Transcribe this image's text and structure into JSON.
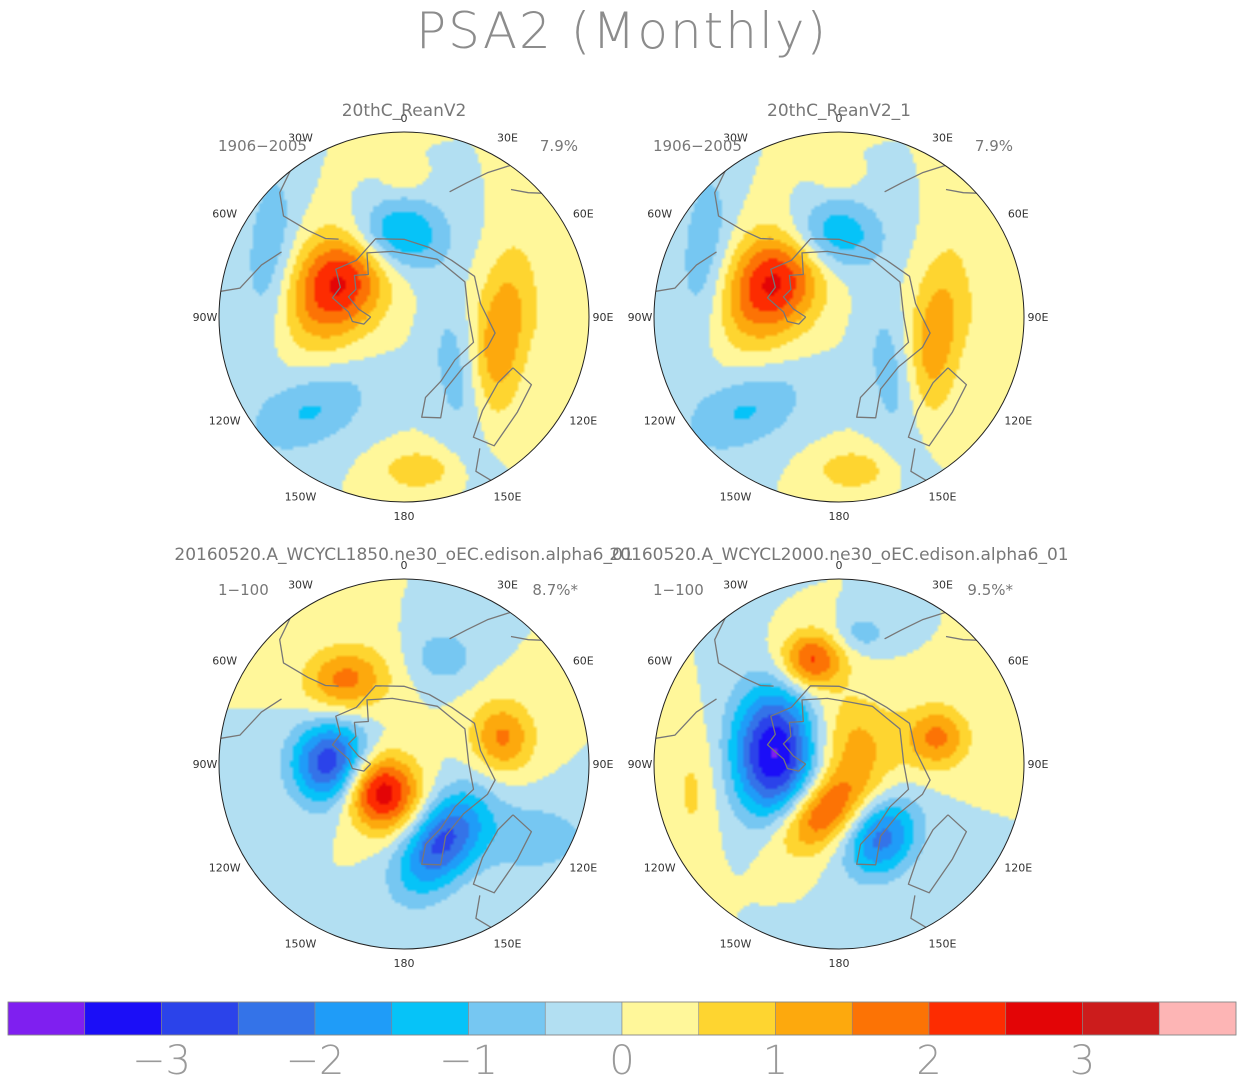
{
  "title": "PSA2 (Monthly)",
  "chart_data": {
    "type": "heatmap",
    "title": "PSA2 (Monthly)",
    "projection": "south-polar-stereographic",
    "colorbar": {
      "colors": [
        "#7f1ff0",
        "#1b0ef7",
        "#2b43ea",
        "#3473e8",
        "#1f9cf8",
        "#06c3f8",
        "#76c7f2",
        "#b2dff2",
        "#fff79a",
        "#fed530",
        "#fda90d",
        "#fc7305",
        "#fd2c01",
        "#e30506",
        "#cc1c1c",
        "#fdb5b5"
      ],
      "tick_labels": [
        "−3",
        "−2",
        "−1",
        "0",
        "1",
        "2",
        "3"
      ],
      "tick_values": [
        -3,
        -2,
        -1,
        0,
        1,
        2,
        3
      ],
      "range": [
        -4,
        4
      ],
      "interval": 0.5
    },
    "longitude_labels": [
      "0",
      "30E",
      "60E",
      "90E",
      "120E",
      "150E",
      "180",
      "150W",
      "120W",
      "90W",
      "60W",
      "30W"
    ],
    "panels": [
      {
        "name": "20thC_ReanV2",
        "years": "1906−2005",
        "pct": "7.9%",
        "centers": [
          {
            "lon": -60,
            "r": 0.4,
            "value": 2.7,
            "sx": 0.17,
            "sy": 0.24,
            "rot": 30
          },
          {
            "lon": -8,
            "r": 0.45,
            "value": -2.0,
            "sx": 0.19,
            "sy": 0.14,
            "rot": 0
          },
          {
            "lon": 103,
            "r": 0.53,
            "value": 1.5,
            "sx": 0.11,
            "sy": 0.34,
            "rot": 10
          },
          {
            "lon": -135,
            "r": 0.72,
            "value": -1.05,
            "sx": 0.25,
            "sy": 0.14,
            "rot": -25
          },
          {
            "lon": -65,
            "r": 0.8,
            "value": -0.9,
            "sx": 0.1,
            "sy": 0.35,
            "rot": 5
          },
          {
            "lon": 140,
            "r": 0.48,
            "value": -0.9,
            "sx": 0.1,
            "sy": 0.32,
            "rot": -10
          },
          {
            "lon": 175,
            "r": 0.83,
            "value": 0.9,
            "sx": 0.14,
            "sy": 0.08,
            "rot": 0
          },
          {
            "lon": 0,
            "r": 0.75,
            "value": 0.45,
            "sx": 0.07,
            "sy": 0.05,
            "rot": 0
          },
          {
            "lon": 90,
            "r": 0.85,
            "value": 0.35,
            "sx": 0.1,
            "sy": 0.14,
            "rot": 0
          }
        ]
      },
      {
        "name": "20thC_ReanV2_1",
        "years": "1906−2005",
        "pct": "7.9%",
        "centers": [
          {
            "lon": -60,
            "r": 0.4,
            "value": 2.7,
            "sx": 0.17,
            "sy": 0.24,
            "rot": 30
          },
          {
            "lon": -8,
            "r": 0.45,
            "value": -1.8,
            "sx": 0.19,
            "sy": 0.14,
            "rot": 0
          },
          {
            "lon": 103,
            "r": 0.53,
            "value": 1.4,
            "sx": 0.11,
            "sy": 0.34,
            "rot": 10
          },
          {
            "lon": -135,
            "r": 0.72,
            "value": -1.05,
            "sx": 0.25,
            "sy": 0.14,
            "rot": -25
          },
          {
            "lon": -65,
            "r": 0.8,
            "value": -0.9,
            "sx": 0.1,
            "sy": 0.35,
            "rot": 5
          },
          {
            "lon": 140,
            "r": 0.48,
            "value": -0.9,
            "sx": 0.1,
            "sy": 0.32,
            "rot": -10
          },
          {
            "lon": 175,
            "r": 0.83,
            "value": 0.9,
            "sx": 0.14,
            "sy": 0.08,
            "rot": 0
          },
          {
            "lon": 0,
            "r": 0.75,
            "value": 0.45,
            "sx": 0.07,
            "sy": 0.05,
            "rot": 0
          },
          {
            "lon": 90,
            "r": 0.85,
            "value": 0.35,
            "sx": 0.1,
            "sy": 0.14,
            "rot": 0
          }
        ]
      },
      {
        "name": "20160520.A_WCYCL1850.ne30_oEC.edison.alpha6_01",
        "years": "1−100",
        "pct": "8.7%*",
        "centers": [
          {
            "lon": -90,
            "r": 0.38,
            "value": -3.3,
            "sx": 0.15,
            "sy": 0.16,
            "rot": 0
          },
          {
            "lon": -135,
            "r": 0.2,
            "value": 3.2,
            "sx": 0.16,
            "sy": 0.14,
            "rot": 40
          },
          {
            "lon": 155,
            "r": 0.47,
            "value": -2.6,
            "sx": 0.13,
            "sy": 0.22,
            "rot": 35
          },
          {
            "lon": -35,
            "r": 0.55,
            "value": 1.7,
            "sx": 0.16,
            "sy": 0.13,
            "rot": -10
          },
          {
            "lon": 75,
            "r": 0.55,
            "value": 1.6,
            "sx": 0.12,
            "sy": 0.14,
            "rot": 0
          },
          {
            "lon": 20,
            "r": 0.62,
            "value": -0.9,
            "sx": 0.12,
            "sy": 0.1,
            "rot": 0
          },
          {
            "lon": 120,
            "r": 0.8,
            "value": -0.8,
            "sx": 0.25,
            "sy": 0.15,
            "rot": 0
          }
        ]
      },
      {
        "name": "20160520.A_WCYCL2000.ne30_oEC.edison.alpha6_01",
        "years": "1−100",
        "pct": "9.5%*",
        "centers": [
          {
            "lon": -80,
            "r": 0.35,
            "value": -3.6,
            "sx": 0.16,
            "sy": 0.25,
            "rot": 0
          },
          {
            "lon": -160,
            "r": 0.28,
            "value": 2.3,
            "sx": 0.2,
            "sy": 0.12,
            "rot": -40
          },
          {
            "lon": 150,
            "r": 0.46,
            "value": -2.2,
            "sx": 0.13,
            "sy": 0.16,
            "rot": 35
          },
          {
            "lon": -15,
            "r": 0.58,
            "value": 2.2,
            "sx": 0.12,
            "sy": 0.11,
            "rot": 0
          },
          {
            "lon": 75,
            "r": 0.55,
            "value": 1.6,
            "sx": 0.12,
            "sy": 0.12,
            "rot": 0
          },
          {
            "lon": 30,
            "r": 0.15,
            "value": 1.1,
            "sx": 0.18,
            "sy": 0.18,
            "rot": 0
          },
          {
            "lon": -100,
            "r": 0.8,
            "value": 0.6,
            "sx": 0.1,
            "sy": 0.25,
            "rot": 0
          },
          {
            "lon": 10,
            "r": 0.72,
            "value": -0.8,
            "sx": 0.1,
            "sy": 0.07,
            "rot": 0
          }
        ]
      }
    ]
  }
}
